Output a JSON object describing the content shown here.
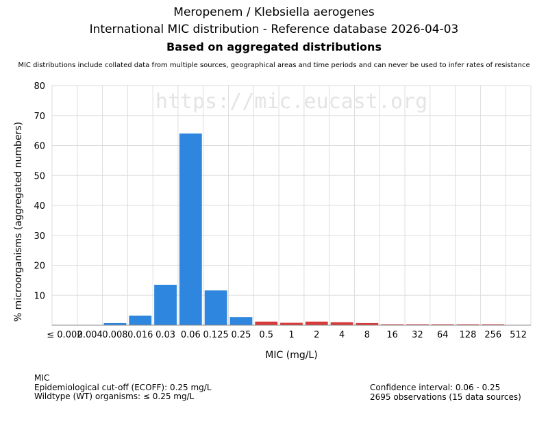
{
  "header": {
    "title_line1": "Meropenem / Klebsiella aerogenes",
    "title_line2": "International MIC distribution - Reference database 2026-04-03",
    "title_line3": "Based on aggregated distributions",
    "note": "MIC distributions include collated data from multiple sources, geographical areas and time periods and can never be used to infer rates of resistance"
  },
  "watermark": "https://mic.eucast.org",
  "colors": {
    "wildtype": "#2e86de",
    "non_wildtype": "#d63a3a",
    "grid": "#dddddd"
  },
  "chart_data": {
    "type": "bar",
    "xlabel": "MIC (mg/L)",
    "ylabel": "% microorganisms (aggregated numbers)",
    "ylim": [
      0,
      80
    ],
    "yticks": [
      10,
      20,
      30,
      40,
      50,
      60,
      70,
      80
    ],
    "grid": true,
    "categories": [
      "≤ 0.002",
      "0.004",
      "0.008",
      "0.016",
      "0.03",
      "0.06",
      "0.125",
      "0.25",
      "0.5",
      "1",
      "2",
      "4",
      "8",
      "16",
      "32",
      "64",
      "128",
      "256",
      "512"
    ],
    "values": [
      0,
      0,
      0.7,
      3.2,
      13.5,
      64,
      11.6,
      2.7,
      1.2,
      0.8,
      1.2,
      1.0,
      0.7,
      0.3,
      0.3,
      0.3,
      0.3,
      0.3,
      0
    ],
    "group": [
      "wt",
      "wt",
      "wt",
      "wt",
      "wt",
      "wt",
      "wt",
      "wt",
      "nwt",
      "nwt",
      "nwt",
      "nwt",
      "nwt",
      "nwt",
      "nwt",
      "nwt",
      "nwt",
      "nwt",
      "nwt"
    ]
  },
  "info": {
    "mic_label": "MIC",
    "ecoff": "Epidemiological cut-off (ECOFF): 0.25 mg/L",
    "wildtype": "Wildtype (WT) organisms: ≤ 0.25 mg/L",
    "confidence": "Confidence interval: 0.06 - 0.25",
    "observations": "2695 observations (15 data sources)"
  }
}
